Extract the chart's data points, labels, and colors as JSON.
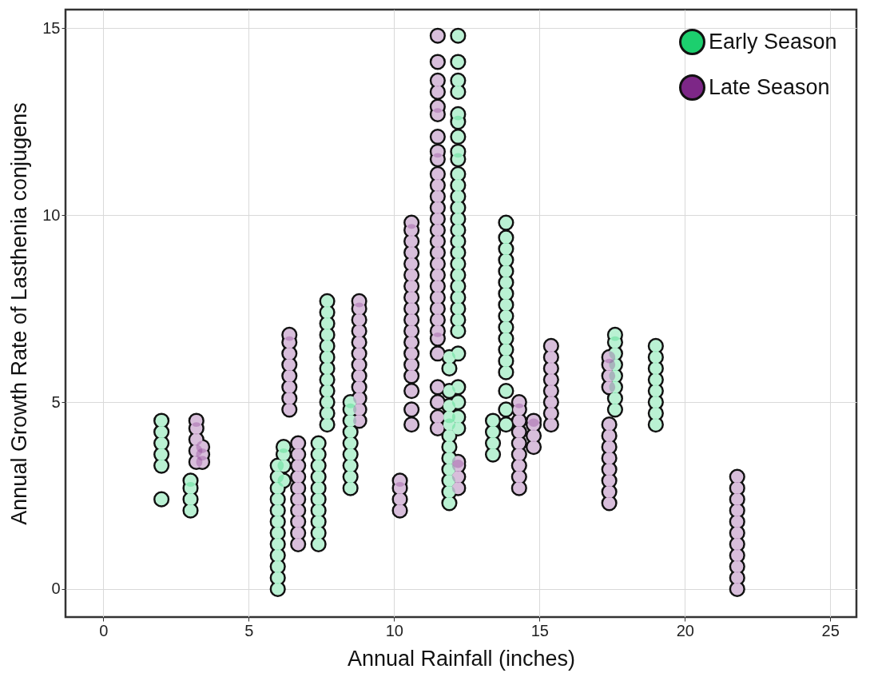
{
  "chart_data": {
    "type": "scatter",
    "xlabel": "Annual Rainfall (inches)",
    "ylabel": "Annual Growth Rate of Lasthenia conjugens",
    "xlim": [
      -1.3,
      25.9
    ],
    "ylim": [
      -0.75,
      15.5
    ],
    "xticks": [
      0,
      5,
      10,
      15,
      20,
      25
    ],
    "yticks": [
      0,
      5,
      10,
      15
    ],
    "grid": true,
    "legend": "top right",
    "marker": "circle",
    "series": [
      {
        "name": "Early Season",
        "color": "#1ccf6e",
        "x": [
          2.0,
          2.0,
          2.0,
          2.0,
          2.0,
          2.0,
          3.0,
          3.0,
          3.0,
          3.0,
          6.0,
          6.0,
          6.0,
          6.0,
          6.0,
          6.0,
          6.0,
          6.0,
          6.0,
          6.0,
          6.0,
          6.0,
          6.2,
          6.2,
          6.2,
          6.2,
          7.4,
          7.4,
          7.4,
          7.4,
          7.4,
          7.4,
          7.4,
          7.4,
          7.4,
          7.4,
          7.7,
          7.7,
          7.7,
          7.7,
          7.7,
          7.7,
          7.7,
          7.7,
          7.7,
          7.7,
          7.7,
          7.7,
          8.5,
          8.5,
          8.5,
          8.5,
          8.5,
          8.5,
          8.5,
          8.5,
          8.5,
          11.9,
          11.9,
          11.9,
          11.9,
          11.9,
          11.9,
          11.9,
          11.9,
          11.9,
          11.9,
          11.9,
          11.9,
          11.9,
          12.2,
          12.2,
          12.2,
          12.2,
          12.2,
          12.2,
          12.2,
          12.2,
          12.2,
          12.2,
          12.2,
          12.2,
          12.2,
          12.2,
          12.2,
          12.2,
          12.2,
          12.2,
          12.2,
          12.2,
          12.2,
          12.2,
          12.2,
          12.2,
          12.2,
          12.2,
          12.2,
          12.2,
          12.2,
          13.4,
          13.4,
          13.4,
          13.4,
          13.85,
          13.85,
          13.85,
          13.85,
          13.85,
          13.85,
          13.85,
          13.85,
          13.85,
          13.85,
          13.85,
          13.85,
          13.85,
          13.85,
          13.85,
          13.85,
          13.85,
          17.6,
          17.6,
          17.6,
          17.6,
          17.6,
          17.6,
          17.6,
          17.6,
          19.0,
          19.0,
          19.0,
          19.0,
          19.0,
          19.0,
          19.0,
          19.0
        ],
        "values": [
          2.4,
          3.3,
          3.6,
          3.9,
          4.2,
          4.5,
          2.1,
          2.4,
          2.7,
          2.9,
          0,
          0.3,
          0.6,
          0.9,
          1.2,
          1.5,
          1.8,
          2.1,
          2.4,
          2.7,
          3.0,
          3.3,
          2.9,
          3.3,
          3.6,
          3.8,
          1.2,
          1.5,
          1.8,
          2.1,
          2.4,
          2.7,
          3.0,
          3.3,
          3.6,
          3.9,
          4.4,
          4.7,
          5.0,
          5.3,
          5.6,
          5.9,
          6.2,
          6.5,
          6.8,
          7.1,
          7.4,
          7.7,
          2.7,
          3.0,
          3.3,
          3.6,
          3.9,
          4.2,
          4.5,
          4.8,
          5.0,
          2.3,
          2.6,
          2.9,
          3.2,
          3.5,
          3.8,
          4.1,
          4.4,
          4.6,
          4.9,
          5.3,
          5.9,
          6.2,
          14.8,
          14.1,
          13.6,
          13.3,
          12.7,
          12.5,
          12.1,
          11.7,
          11.5,
          11.1,
          10.8,
          10.5,
          10.2,
          9.9,
          9.6,
          9.3,
          9.0,
          8.7,
          8.4,
          8.1,
          7.8,
          7.5,
          7.2,
          6.9,
          6.3,
          5.4,
          5.0,
          4.6,
          4.3,
          3.6,
          3.9,
          4.2,
          4.5,
          4.4,
          4.8,
          5.3,
          5.8,
          6.1,
          6.4,
          6.7,
          7.0,
          7.3,
          7.6,
          7.9,
          8.2,
          8.5,
          8.8,
          9.1,
          9.4,
          9.8,
          4.8,
          5.1,
          5.4,
          5.7,
          6.0,
          6.3,
          6.6,
          6.8,
          4.4,
          4.7,
          5.0,
          5.3,
          5.6,
          5.9,
          6.2,
          6.5
        ]
      },
      {
        "name": "Late Season",
        "color": "#7d2787",
        "x": [
          3.2,
          3.2,
          3.2,
          3.2,
          3.2,
          3.4,
          3.4,
          3.4,
          6.4,
          6.4,
          6.4,
          6.4,
          6.4,
          6.4,
          6.4,
          6.4,
          6.7,
          6.7,
          6.7,
          6.7,
          6.7,
          6.7,
          6.7,
          6.7,
          6.7,
          6.7,
          8.8,
          8.8,
          8.8,
          8.8,
          8.8,
          8.8,
          8.8,
          8.8,
          8.8,
          8.8,
          8.8,
          8.8,
          10.2,
          10.2,
          10.2,
          10.2,
          10.6,
          10.6,
          10.6,
          10.6,
          10.6,
          10.6,
          10.6,
          10.6,
          10.6,
          10.6,
          10.6,
          10.6,
          10.6,
          10.6,
          10.6,
          10.6,
          10.6,
          10.6,
          11.5,
          11.5,
          11.5,
          11.5,
          11.5,
          11.5,
          11.5,
          11.5,
          11.5,
          11.5,
          11.5,
          11.5,
          11.5,
          11.5,
          11.5,
          11.5,
          11.5,
          11.5,
          11.5,
          11.5,
          11.5,
          11.5,
          11.5,
          11.5,
          11.5,
          11.5,
          11.5,
          11.5,
          11.5,
          11.5,
          12.2,
          12.2,
          12.2,
          12.2,
          14.3,
          14.3,
          14.3,
          14.3,
          14.3,
          14.3,
          14.3,
          14.3,
          14.3,
          14.8,
          14.8,
          14.8,
          14.8,
          15.4,
          15.4,
          15.4,
          15.4,
          15.4,
          15.4,
          15.4,
          15.4,
          17.4,
          17.4,
          17.4,
          17.4,
          17.4,
          17.4,
          17.4,
          17.4,
          17.4,
          17.4,
          17.4,
          17.4,
          21.8,
          21.8,
          21.8,
          21.8,
          21.8,
          21.8,
          21.8,
          21.8,
          21.8,
          21.8,
          21.8
        ],
        "values": [
          3.4,
          3.7,
          4.0,
          4.3,
          4.5,
          3.4,
          3.6,
          3.8,
          4.8,
          5.1,
          5.4,
          5.7,
          6.0,
          6.3,
          6.6,
          6.8,
          1.2,
          1.5,
          1.8,
          2.1,
          2.4,
          2.7,
          3.0,
          3.3,
          3.6,
          3.9,
          4.5,
          4.8,
          5.1,
          5.4,
          5.7,
          6.0,
          6.3,
          6.6,
          6.9,
          7.2,
          7.5,
          7.7,
          2.1,
          2.4,
          2.7,
          2.9,
          4.4,
          4.8,
          5.3,
          5.7,
          6.0,
          6.3,
          6.6,
          6.9,
          7.2,
          7.5,
          7.8,
          8.1,
          8.4,
          8.7,
          9.0,
          9.3,
          9.6,
          9.8,
          14.8,
          14.1,
          13.6,
          13.3,
          12.9,
          12.7,
          12.1,
          11.7,
          11.5,
          11.1,
          10.8,
          10.5,
          10.2,
          9.9,
          9.6,
          9.3,
          9.0,
          8.7,
          8.4,
          8.1,
          7.8,
          7.5,
          7.2,
          6.9,
          6.7,
          6.3,
          5.4,
          5.0,
          4.6,
          4.3,
          2.7,
          3.0,
          3.3,
          3.4,
          2.7,
          3.0,
          3.3,
          3.6,
          3.9,
          4.2,
          4.5,
          4.8,
          5.0,
          3.8,
          4.1,
          4.4,
          4.5,
          4.4,
          4.7,
          5.0,
          5.3,
          5.6,
          5.9,
          6.2,
          6.5,
          2.3,
          2.6,
          2.9,
          3.2,
          3.5,
          3.8,
          4.1,
          4.4,
          5.4,
          5.7,
          6.0,
          6.2,
          0,
          0.3,
          0.6,
          0.9,
          1.2,
          1.5,
          1.8,
          2.1,
          2.4,
          2.7,
          3.0
        ]
      }
    ]
  }
}
